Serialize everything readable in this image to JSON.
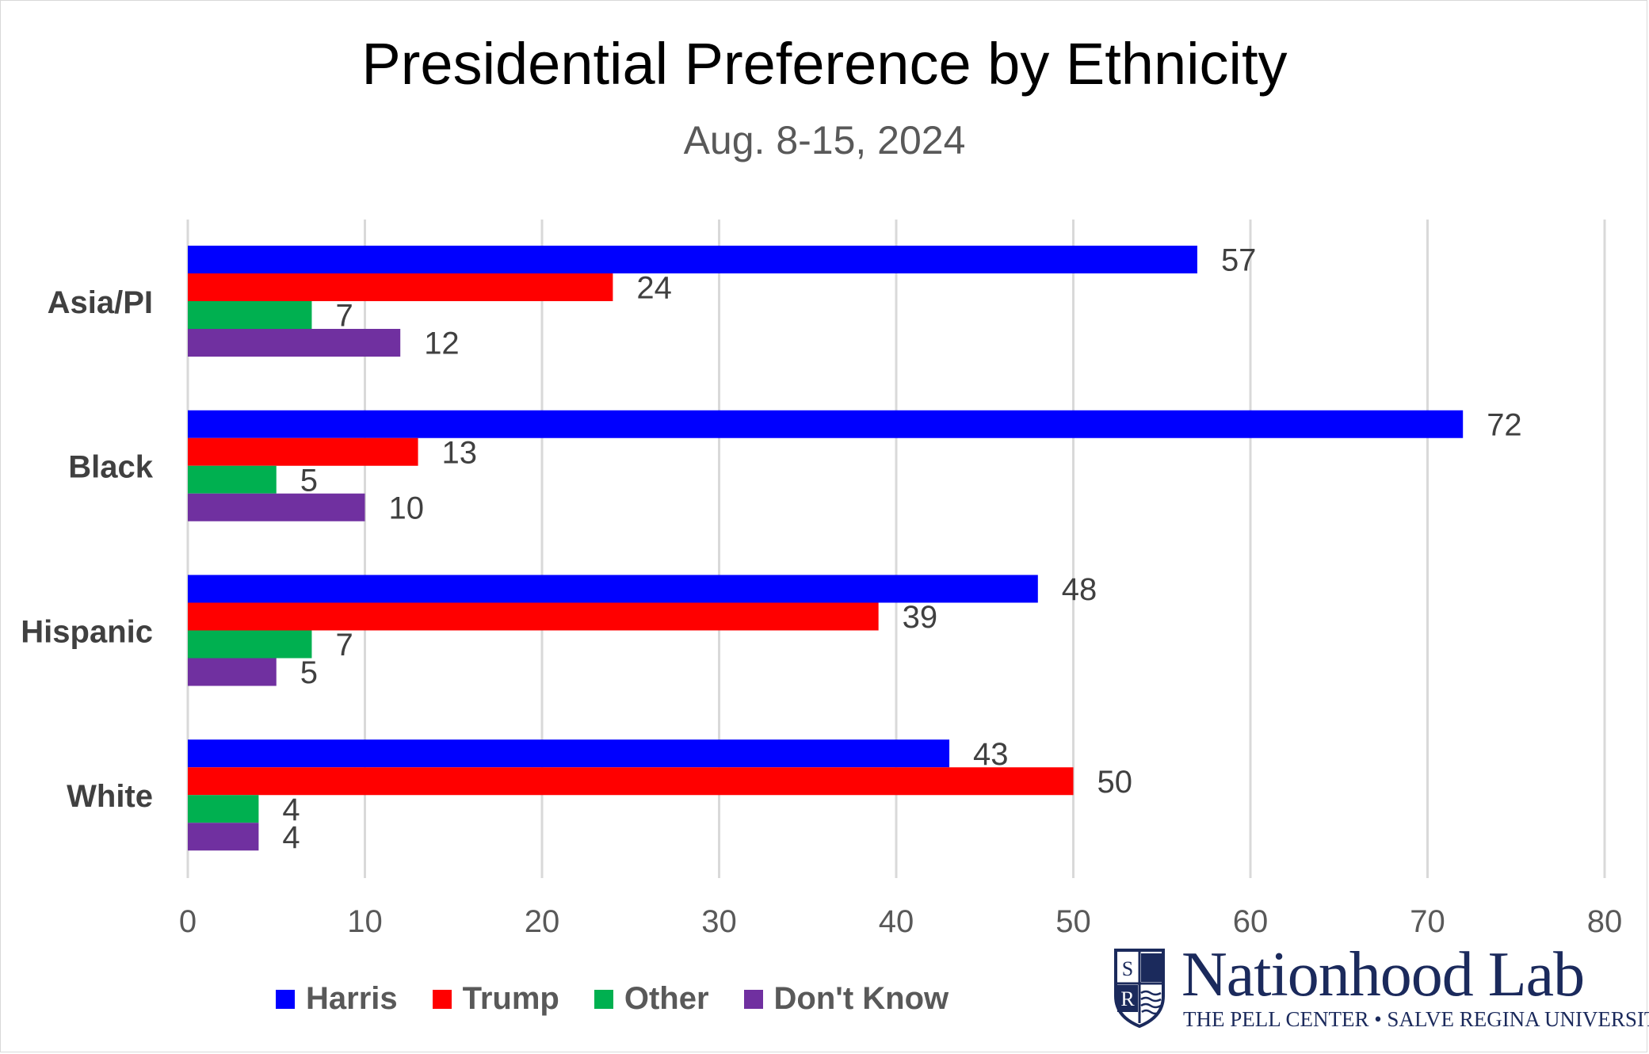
{
  "chart_data": {
    "type": "bar",
    "orientation": "horizontal",
    "title": "Presidential Preference by Ethnicity",
    "subtitle": "Aug. 8-15, 2024",
    "categories": [
      "Asia/PI",
      "Black",
      "Hispanic",
      "White"
    ],
    "series": [
      {
        "name": "Harris",
        "color": "#0000ff",
        "values": [
          57,
          72,
          48,
          43
        ]
      },
      {
        "name": "Trump",
        "color": "#ff0000",
        "values": [
          24,
          13,
          39,
          50
        ]
      },
      {
        "name": "Other",
        "color": "#00b050",
        "values": [
          7,
          5,
          7,
          4
        ]
      },
      {
        "name": "Don't Know",
        "color": "#7030a0",
        "values": [
          12,
          10,
          5,
          4
        ]
      }
    ],
    "xlim": [
      0,
      80
    ],
    "xticks": [
      "0",
      "10",
      "20",
      "30",
      "40",
      "50",
      "60",
      "70",
      "80"
    ],
    "grid": true,
    "legend_position": "bottom-left"
  },
  "logo": {
    "name": "Nationhood Lab",
    "subtitle": "THE PELL CENTER • SALVE REGINA UNIVERSITY",
    "shield_letters": [
      "S",
      "R"
    ]
  }
}
